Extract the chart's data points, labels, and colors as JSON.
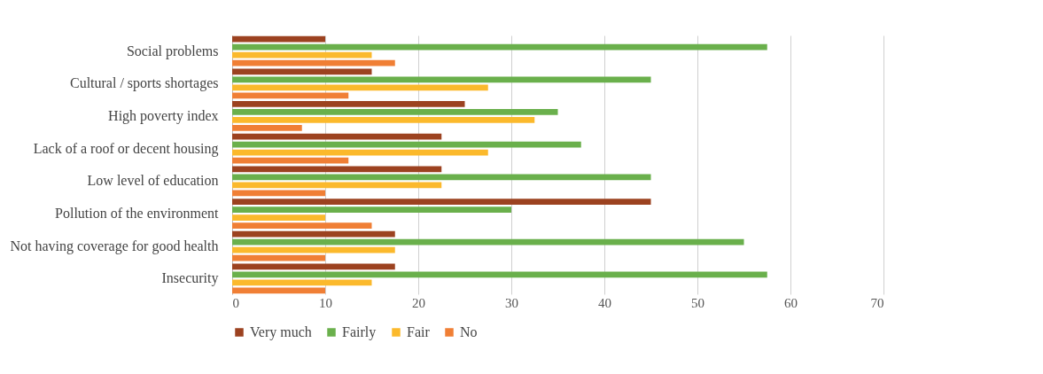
{
  "chart_data": {
    "type": "bar",
    "orientation": "horizontal",
    "categories": [
      "Social problems",
      "Cultural / sports shortages",
      "High poverty index",
      "Lack of a roof or decent housing",
      "Low level of education",
      "Pollution of the environment",
      "Not having coverage for good health",
      "Insecurity"
    ],
    "series": [
      {
        "name": "Very much",
        "color": "#9c4220",
        "values": [
          10,
          15,
          25,
          22.5,
          22.5,
          45,
          17.5,
          17.5
        ]
      },
      {
        "name": "Fairly",
        "color": "#6ab04c",
        "values": [
          57.5,
          45,
          35,
          37.5,
          45,
          30,
          55,
          57.5
        ]
      },
      {
        "name": "Fair",
        "color": "#fbb92c",
        "values": [
          15,
          27.5,
          32.5,
          27.5,
          22.5,
          10,
          17.5,
          15
        ]
      },
      {
        "name": "No",
        "color": "#f07f35",
        "values": [
          17.5,
          12.5,
          7.5,
          12.5,
          10,
          15,
          10,
          10
        ]
      }
    ],
    "xlim": [
      0,
      70
    ],
    "xticks": [
      0,
      10,
      20,
      30,
      40,
      50,
      60,
      70
    ],
    "grid": "x",
    "legend": "bottom"
  }
}
